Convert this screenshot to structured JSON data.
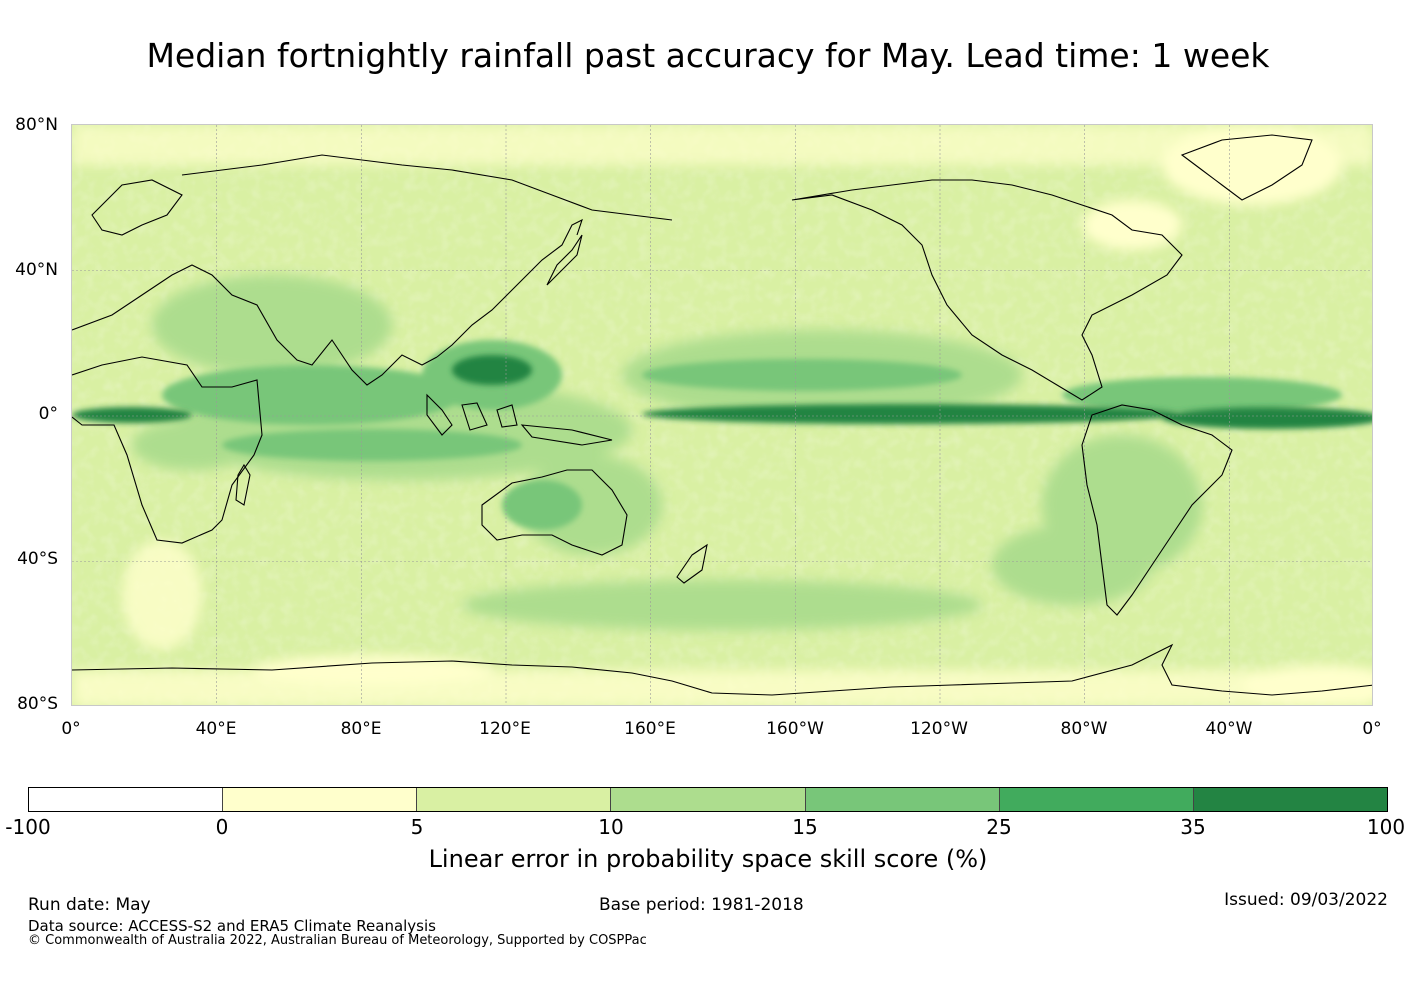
{
  "title": "Median fortnightly rainfall past accuracy for May. Lead time: 1 week",
  "map": {
    "lat_ticks": [
      "80°N",
      "40°N",
      "0°",
      "40°S",
      "80°S"
    ],
    "lon_ticks": [
      "0°",
      "40°E",
      "80°E",
      "120°E",
      "160°E",
      "160°W",
      "120°W",
      "80°W",
      "40°W",
      "0°"
    ],
    "grid_color": "#9a9a9a",
    "coast_color": "#000000"
  },
  "colorbar": {
    "colors": [
      "#ffffff",
      "#ffffcc",
      "#d9f0a3",
      "#addd8e",
      "#78c679",
      "#41ab5d",
      "#238443"
    ],
    "ticks": [
      "-100",
      "0",
      "5",
      "10",
      "15",
      "25",
      "35",
      "100"
    ],
    "label": "Linear error in probability space skill score (%)"
  },
  "footer": {
    "run_date": "Run date: May",
    "base_period": "Base period: 1981-2018",
    "issued": "Issued: 09/03/2022",
    "data_source": "Data source: ACCESS-S2 and ERA5 Climate Reanalysis",
    "copyright": "© Commonwealth of Australia 2022, Australian Bureau of Meteorology, Supported by COSPPac"
  }
}
